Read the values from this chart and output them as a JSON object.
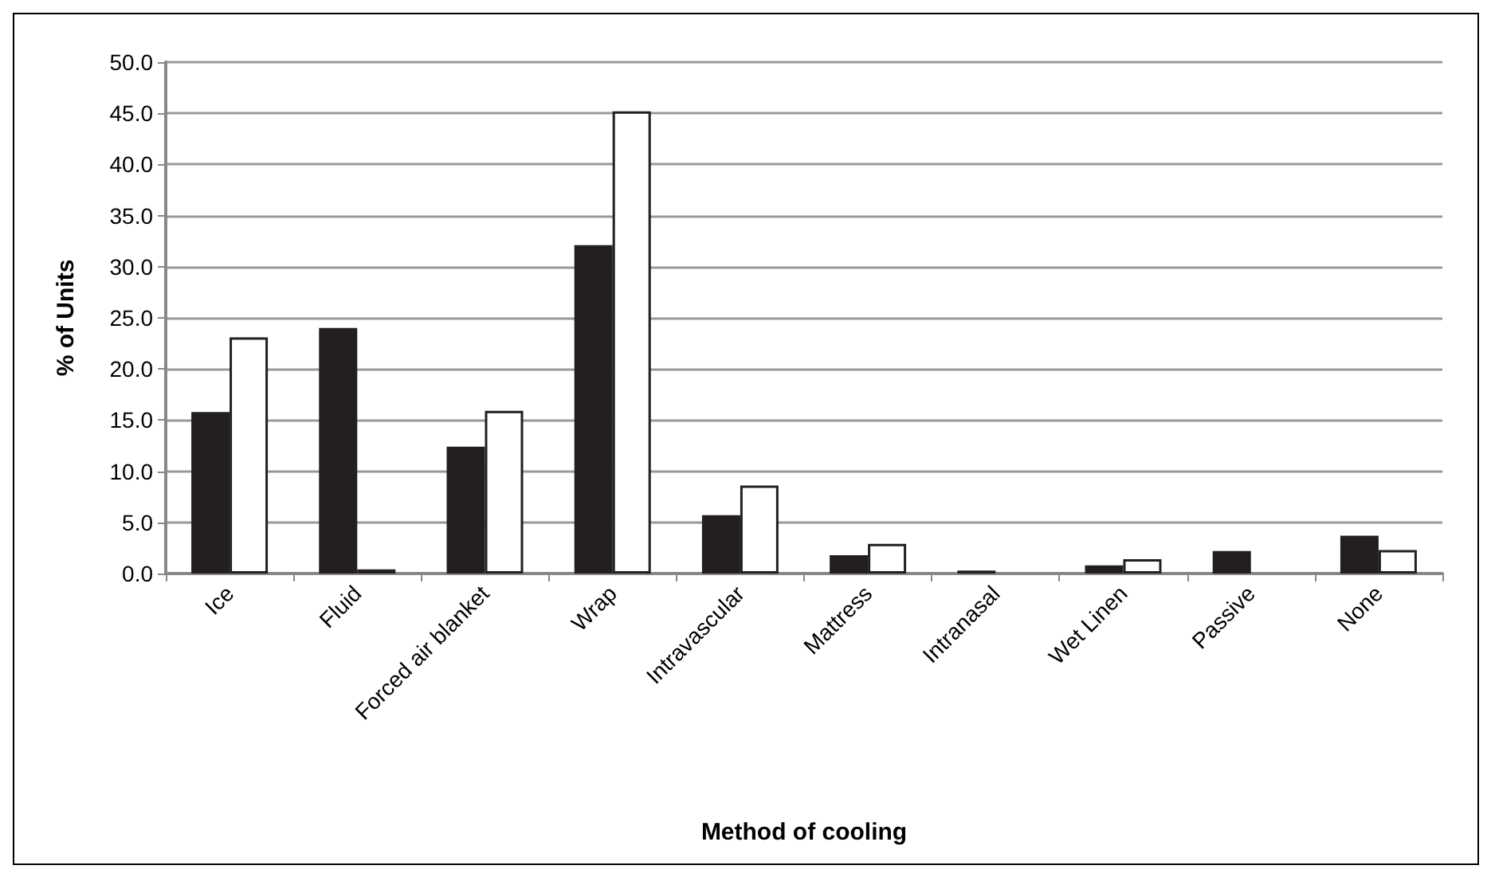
{
  "chart_data": {
    "type": "bar",
    "xlabel": "Method of cooling",
    "ylabel": "% of Units",
    "categories": [
      "Ice",
      "Fluid",
      "Forced air blanket",
      "Wrap",
      "Intravascular",
      "Mattress",
      "Intranasal",
      "Wet Linen",
      "Passive",
      "None"
    ],
    "series": [
      {
        "color": "#231f20",
        "values": [
          15.8,
          24.0,
          12.4,
          32.1,
          5.7,
          1.8,
          0.3,
          0.8,
          2.2,
          3.7
        ]
      },
      {
        "color": "#ffffff",
        "values": [
          23.1,
          0.4,
          15.9,
          45.2,
          8.6,
          2.9,
          0,
          1.4,
          0,
          2.3
        ]
      }
    ],
    "ylim": [
      0,
      50
    ],
    "yticks": [
      {
        "value": 0,
        "label": "0.0"
      },
      {
        "value": 5,
        "label": "5.0"
      },
      {
        "value": 10,
        "label": "10.0"
      },
      {
        "value": 15,
        "label": "15.0"
      },
      {
        "value": 20,
        "label": "20.0"
      },
      {
        "value": 25,
        "label": "25.0"
      },
      {
        "value": 30,
        "label": "30.0"
      },
      {
        "value": 35,
        "label": "35.0"
      },
      {
        "value": 40,
        "label": "40.0"
      },
      {
        "value": 45,
        "label": "45.0"
      },
      {
        "value": 50,
        "label": "50.0"
      }
    ],
    "grid": "y"
  }
}
